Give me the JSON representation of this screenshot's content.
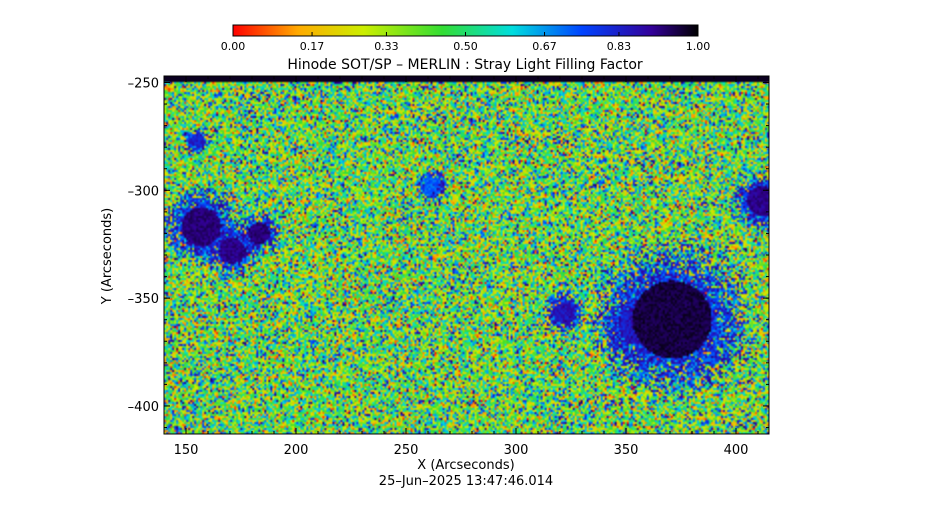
{
  "chart_data": {
    "type": "heatmap",
    "title": "Hinode SOT/SP – MERLIN : Stray Light Filling Factor",
    "xlabel": "X (Arcseconds)",
    "ylabel": "Y (Arcseconds)",
    "timestamp": "25–Jun–2025 13:47:46.014",
    "xlim": [
      140,
      415
    ],
    "ylim": [
      -413,
      -247
    ],
    "x_ticks": [
      150,
      200,
      250,
      300,
      350,
      400
    ],
    "x_tick_labels": [
      "150",
      "200",
      "250",
      "300",
      "350",
      "400"
    ],
    "y_ticks": [
      -250,
      -300,
      -350,
      -400
    ],
    "y_tick_labels": [
      "–250",
      "–300",
      "–350",
      "–400"
    ],
    "colorbar": {
      "range": [
        0,
        1
      ],
      "ticks": [
        0.0,
        0.17,
        0.33,
        0.5,
        0.67,
        0.83,
        1.0
      ],
      "tick_labels": [
        "0.00",
        "0.17",
        "0.33",
        "0.50",
        "0.67",
        "0.83",
        "1.00"
      ],
      "colormap": [
        "#ff0000",
        "#ffaa00",
        "#ccee00",
        "#33dd33",
        "#00dddd",
        "#0044ff",
        "#330099",
        "#000000"
      ]
    },
    "background": {
      "dominant_range": [
        0.17,
        0.67
      ],
      "mean": 0.4
    },
    "features": [
      {
        "x": 157,
        "y": -317,
        "value": 0.9,
        "radius": 9
      },
      {
        "x": 171,
        "y": -328,
        "value": 0.88,
        "radius": 6
      },
      {
        "x": 183,
        "y": -320,
        "value": 0.9,
        "radius": 5
      },
      {
        "x": 155,
        "y": -277,
        "value": 0.8,
        "radius": 3
      },
      {
        "x": 371,
        "y": -360,
        "value": 0.95,
        "radius": 18
      },
      {
        "x": 355,
        "y": -363,
        "value": 0.8,
        "radius": 8
      },
      {
        "x": 322,
        "y": -357,
        "value": 0.82,
        "radius": 5
      },
      {
        "x": 412,
        "y": -305,
        "value": 0.88,
        "radius": 7
      },
      {
        "x": 262,
        "y": -298,
        "value": 0.7,
        "radius": 4
      }
    ]
  }
}
